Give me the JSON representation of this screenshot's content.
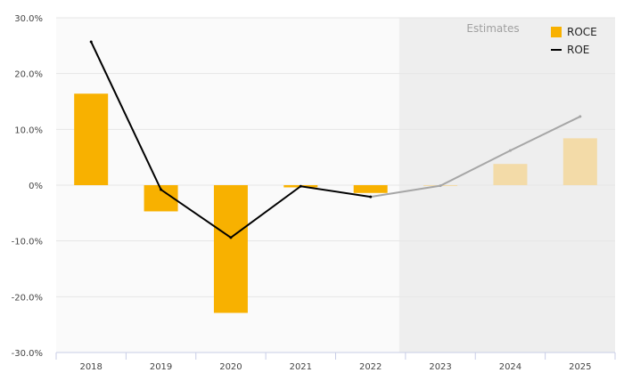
{
  "estimates_label": "Estimates",
  "legend": {
    "roce": "ROCE",
    "roe": "ROE"
  },
  "colors": {
    "bar_actual": "#f8b100",
    "bar_estimate": "#f3dba8",
    "line_actual": "#000000",
    "line_estimate": "#a6a6a6",
    "estimate_band": "#eeeeee",
    "plot_bg": "#fafafa",
    "grid": "#e6e6e6",
    "axis": "#c8cde6"
  },
  "chart_data": {
    "type": "bar",
    "categories": [
      "2018",
      "2019",
      "2020",
      "2021",
      "2022",
      "2023",
      "2024",
      "2025"
    ],
    "estimates_start_index": 5,
    "series": [
      {
        "name": "ROCE",
        "type": "bar",
        "values": [
          16.4,
          -4.7,
          -22.9,
          -0.4,
          -1.4,
          -0.1,
          3.8,
          8.4
        ]
      },
      {
        "name": "ROE",
        "type": "line",
        "values": [
          25.7,
          -0.8,
          -9.4,
          -0.2,
          -2.1,
          -0.1,
          6.2,
          12.3
        ]
      }
    ],
    "ylim": [
      -30,
      30
    ],
    "yticks": [
      30,
      20,
      10,
      0,
      -10,
      -20,
      -30
    ],
    "ytick_labels": [
      "30.0%",
      "20.0%",
      "10.0%",
      "0%",
      "-10.0%",
      "-20.0%",
      "-30.0%"
    ],
    "grid": true,
    "legend_position": "top-right"
  }
}
